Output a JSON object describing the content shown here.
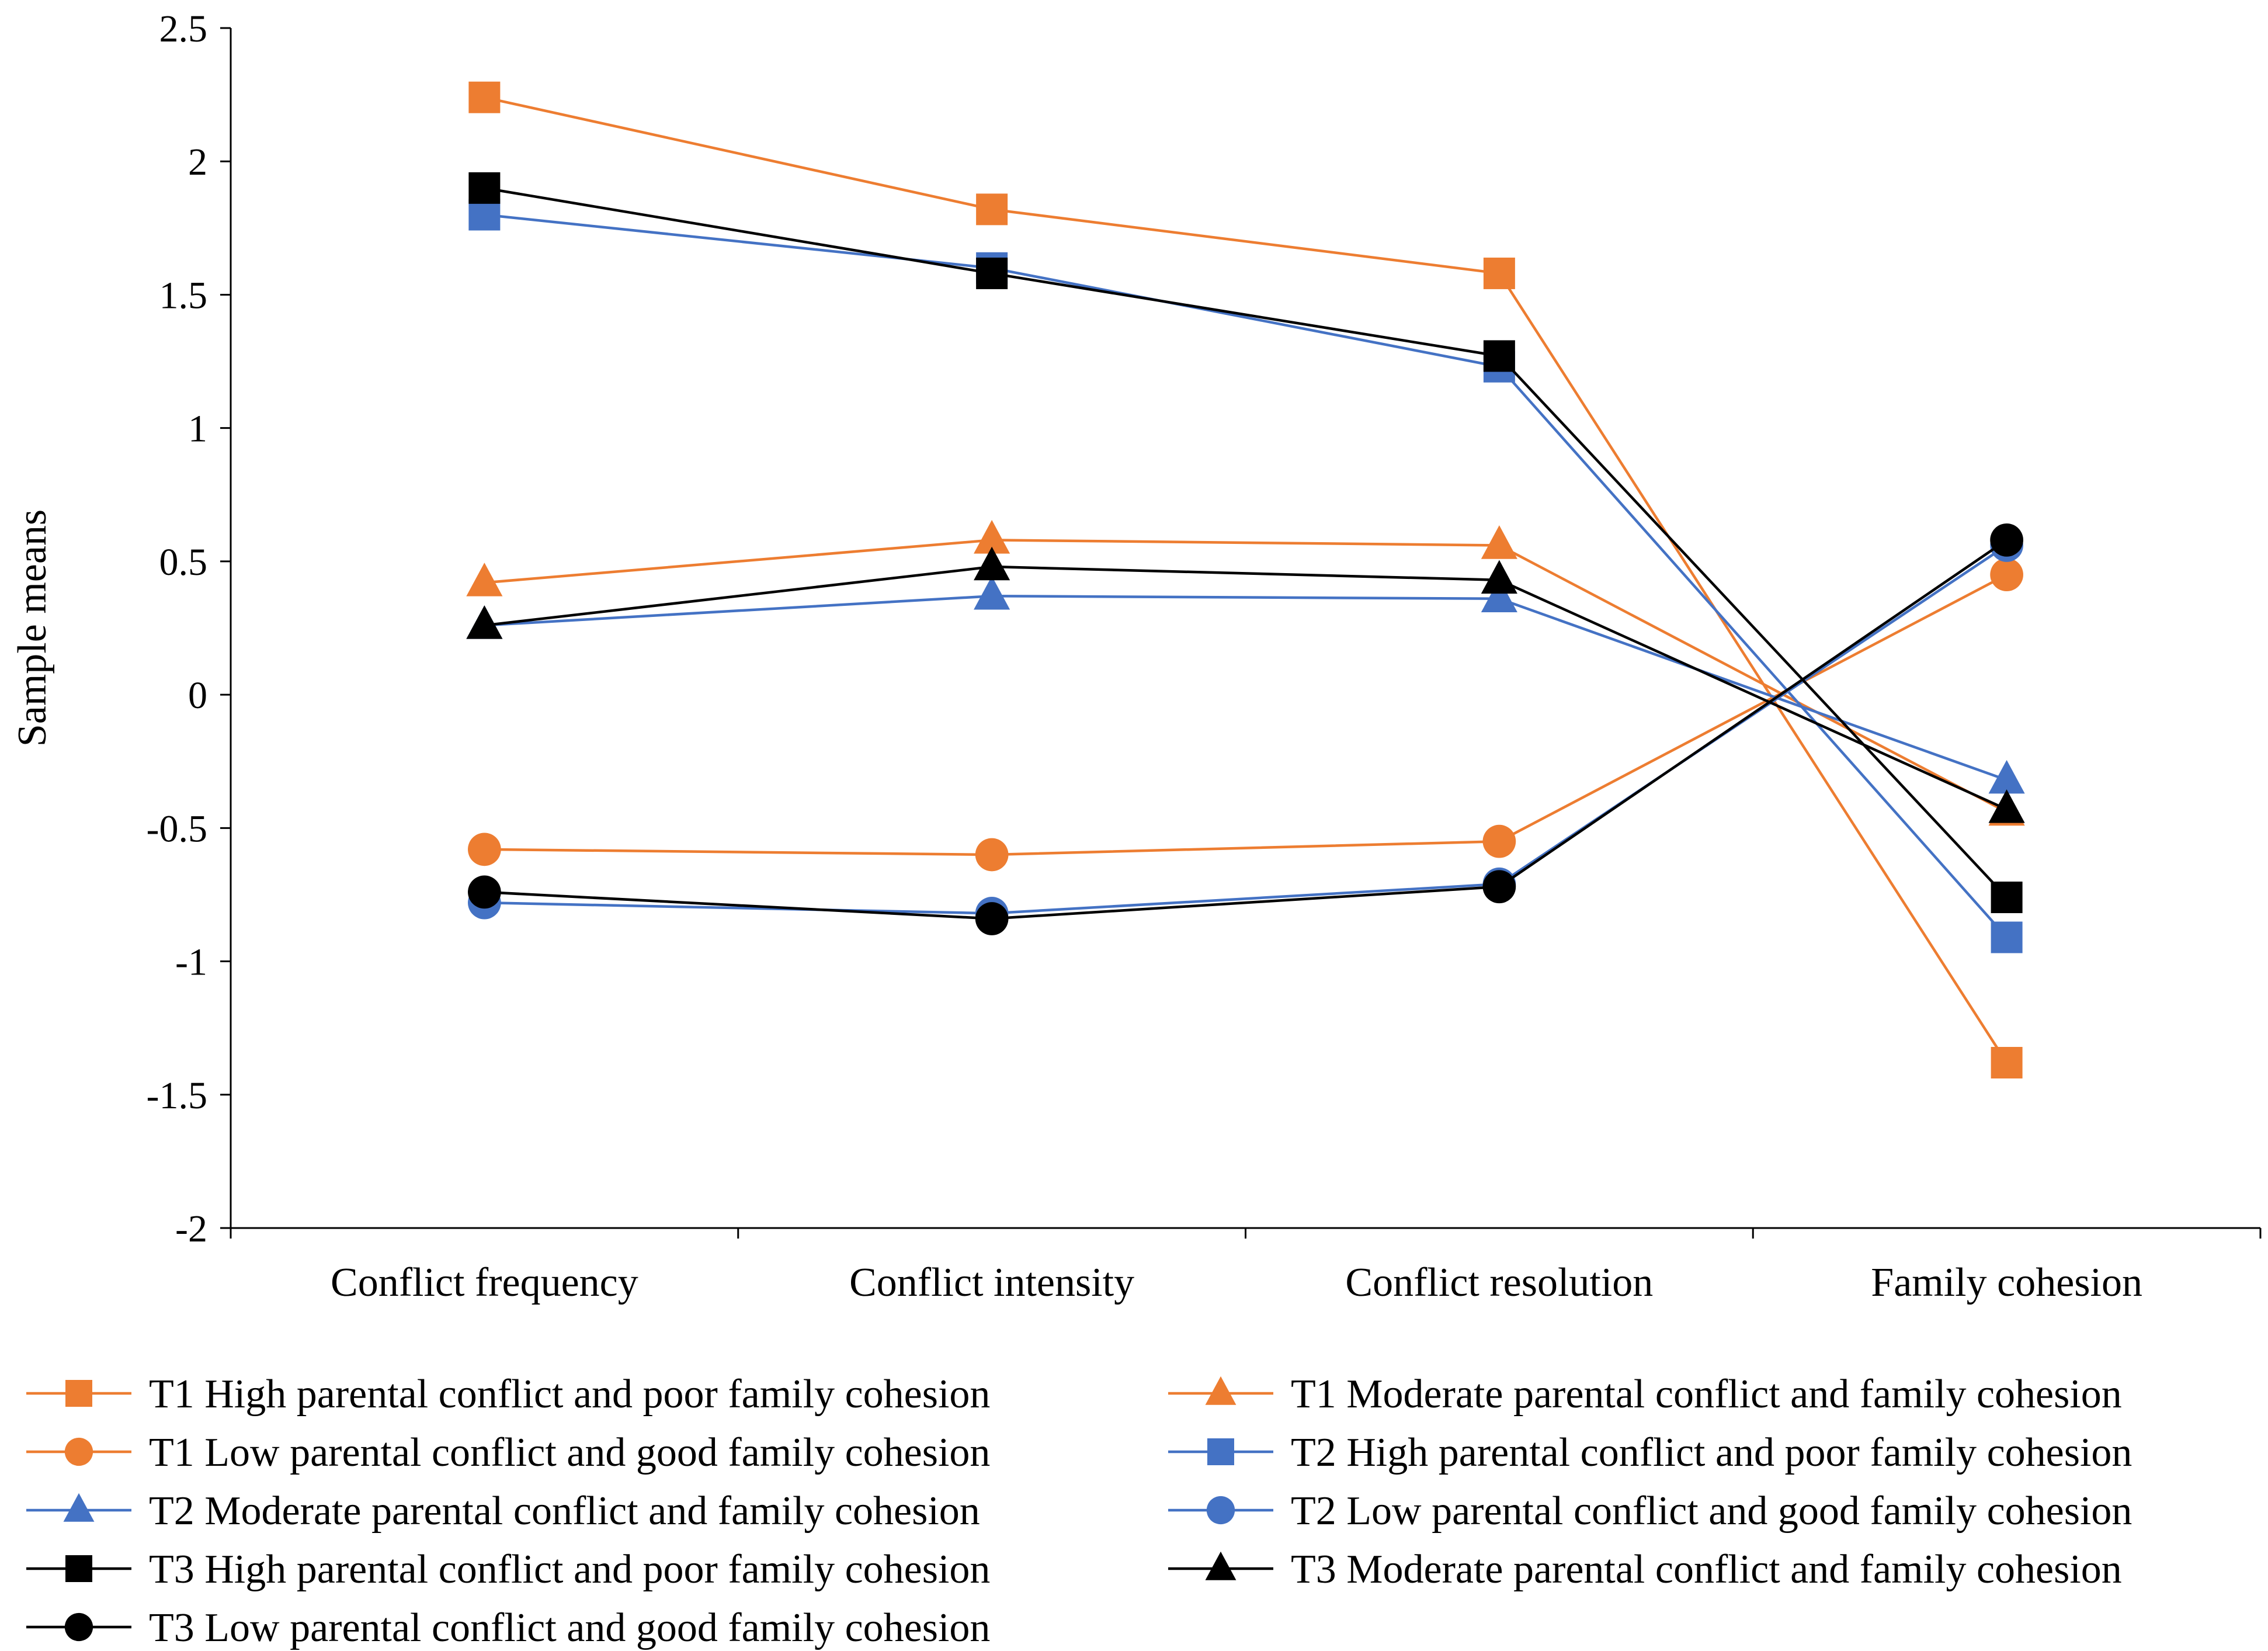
{
  "chart_data": {
    "type": "line",
    "title": "",
    "xlabel": "",
    "ylabel": "Sample means",
    "ylim": [
      -2,
      2.5
    ],
    "yticks": [
      2.5,
      2,
      1.5,
      1,
      0.5,
      0,
      -0.5,
      -1,
      -1.5,
      -2
    ],
    "ytick_labels": [
      "2.5",
      "2",
      "1.5",
      "1",
      "0.5",
      "0",
      "-0.5",
      "-1",
      "-1.5",
      "-2"
    ],
    "categories": [
      "Conflict frequency",
      "Conflict intensity",
      "Conflict resolution",
      "Family cohesion"
    ],
    "grid": false,
    "legend_position": "bottom",
    "series": [
      {
        "name": "T1 High parental conflict and poor family cohesion",
        "color": "#ED7D31",
        "marker": "square",
        "values": [
          2.24,
          1.82,
          1.58,
          -1.38
        ]
      },
      {
        "name": "T1 Moderate parental conflict and  family cohesion",
        "color": "#ED7D31",
        "marker": "triangle",
        "values": [
          0.42,
          0.58,
          0.56,
          -0.44
        ]
      },
      {
        "name": "T1 Low parental conflict and good family cohesion",
        "color": "#ED7D31",
        "marker": "circle",
        "values": [
          -0.58,
          -0.6,
          -0.55,
          0.45
        ]
      },
      {
        "name": "T2 High parental conflict and poor family cohesion",
        "color": "#4472C4",
        "marker": "square",
        "values": [
          1.8,
          1.6,
          1.23,
          -0.91
        ]
      },
      {
        "name": "T2 Moderate parental conflict and  family cohesion",
        "color": "#4472C4",
        "marker": "triangle",
        "values": [
          0.26,
          0.37,
          0.36,
          -0.32
        ]
      },
      {
        "name": "T2 Low parental conflict and good family cohesion",
        "color": "#4472C4",
        "marker": "circle",
        "values": [
          -0.78,
          -0.82,
          -0.71,
          0.56
        ]
      },
      {
        "name": "T3  High parental conflict and poor family cohesion",
        "color": "#000000",
        "marker": "square",
        "values": [
          1.9,
          1.58,
          1.27,
          -0.76
        ]
      },
      {
        "name": "T3 Moderate parental conflict and  family cohesion",
        "color": "#000000",
        "marker": "triangle",
        "values": [
          0.26,
          0.48,
          0.43,
          -0.43
        ]
      },
      {
        "name": "T3 Low parental conflict and good family cohesion",
        "color": "#000000",
        "marker": "circle",
        "values": [
          -0.74,
          -0.84,
          -0.72,
          0.58
        ]
      }
    ]
  }
}
